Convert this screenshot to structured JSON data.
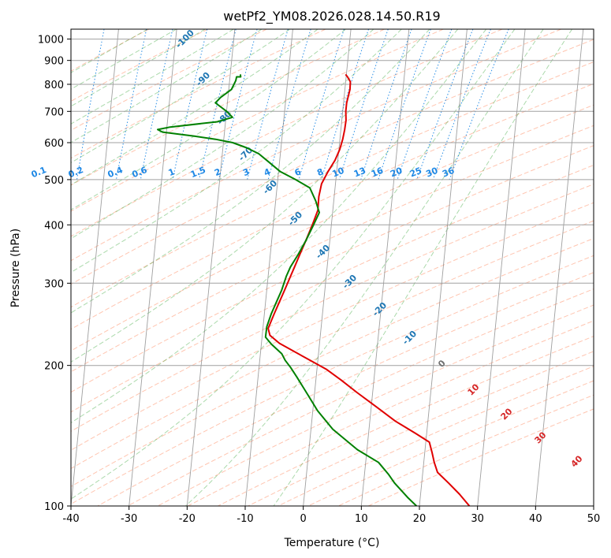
{
  "chart_data": {
    "type": "line",
    "title": "wetPf2_YM08.2026.028.14.50.R19",
    "xlabel": "Temperature (°C)",
    "ylabel": "Pressure (hPa)",
    "xlim": [
      -40,
      50
    ],
    "ylim": [
      1050,
      100
    ],
    "y_scale": "log",
    "x_ticks": [
      -40,
      -30,
      -20,
      -10,
      0,
      10,
      20,
      30,
      40,
      50
    ],
    "y_ticks": [
      100,
      200,
      300,
      400,
      500,
      600,
      700,
      800,
      900,
      1000
    ],
    "grid": true,
    "colors": {
      "temperature": "#e00000",
      "dewpoint": "#008000",
      "dry_adiabat": "#ff7f50",
      "moist_adiabat": "#2ca02c",
      "mixing_ratio": "#1e88e5",
      "isotherm": "#808080",
      "isobar": "#a0a0a0",
      "dry_label": "#d62728",
      "moist_label": "#1f77b4"
    },
    "series": [
      {
        "key": "temperature",
        "points": [
          [
            6.5,
            840
          ],
          [
            6.8,
            830
          ],
          [
            7.2,
            810
          ],
          [
            7.0,
            780
          ],
          [
            6.2,
            730
          ],
          [
            5.9,
            700
          ],
          [
            5.8,
            670
          ],
          [
            5.4,
            640
          ],
          [
            4.9,
            610
          ],
          [
            4.2,
            580
          ],
          [
            3.2,
            550
          ],
          [
            1.8,
            520
          ],
          [
            0.5,
            490
          ],
          [
            -0.2,
            460
          ],
          [
            -0.6,
            430
          ],
          [
            -1.8,
            400
          ],
          [
            -3.2,
            370
          ],
          [
            -4.5,
            345
          ],
          [
            -5.6,
            325
          ],
          [
            -6.6,
            308
          ],
          [
            -7.7,
            290
          ],
          [
            -8.7,
            275
          ],
          [
            -9.9,
            258
          ],
          [
            -11.2,
            240
          ],
          [
            -11.0,
            232
          ],
          [
            -9.5,
            223
          ],
          [
            -4.5,
            205
          ],
          [
            -1.8,
            196
          ],
          [
            0.5,
            186
          ],
          [
            3.0,
            175
          ],
          [
            6.1,
            163
          ],
          [
            9.1,
            152
          ],
          [
            12.4,
            143
          ],
          [
            14.6,
            137
          ],
          [
            14.9,
            130
          ],
          [
            15.1,
            124
          ],
          [
            15.5,
            118
          ],
          [
            17.2,
            112
          ],
          [
            18.9,
            106
          ],
          [
            20.4,
            100
          ]
        ]
      },
      {
        "key": "dewpoint",
        "points": [
          [
            -11.6,
            840
          ],
          [
            -11.6,
            830
          ],
          [
            -12.3,
            830
          ],
          [
            -12.5,
            815
          ],
          [
            -13.4,
            780
          ],
          [
            -15.4,
            750
          ],
          [
            -16.4,
            730
          ],
          [
            -14.6,
            700
          ],
          [
            -13.7,
            680
          ],
          [
            -16.4,
            665
          ],
          [
            -24.6,
            648
          ],
          [
            -26.8,
            640
          ],
          [
            -26.0,
            632
          ],
          [
            -20.7,
            620
          ],
          [
            -17.0,
            610
          ],
          [
            -14.1,
            600
          ],
          [
            -11.8,
            585
          ],
          [
            -9.8,
            568
          ],
          [
            -8.2,
            545
          ],
          [
            -6.4,
            520
          ],
          [
            -3.9,
            500
          ],
          [
            -1.6,
            480
          ],
          [
            -0.8,
            450
          ],
          [
            -0.4,
            425
          ],
          [
            -1.6,
            400
          ],
          [
            -3.2,
            370
          ],
          [
            -4.8,
            345
          ],
          [
            -6.3,
            325
          ],
          [
            -7.2,
            310
          ],
          [
            -8.2,
            290
          ],
          [
            -9.2,
            275
          ],
          [
            -10.4,
            258
          ],
          [
            -11.4,
            242
          ],
          [
            -11.8,
            230
          ],
          [
            -10.9,
            222
          ],
          [
            -9.3,
            212
          ],
          [
            -8.8,
            205
          ],
          [
            -8.0,
            198
          ],
          [
            -7.1,
            189
          ],
          [
            -5.5,
            173
          ],
          [
            -4.1,
            160
          ],
          [
            -1.8,
            146
          ],
          [
            2.1,
            132
          ],
          [
            5.5,
            124
          ],
          [
            7.0,
            117
          ],
          [
            7.9,
            112
          ],
          [
            10.0,
            104
          ],
          [
            11.3,
            100
          ]
        ]
      }
    ],
    "dry_adiabat_labels": [
      "-100",
      "-90",
      "-80",
      "-70",
      "-60",
      "-50",
      "-40",
      "-30",
      "-20",
      "-10"
    ],
    "moist_adiabat_labels": [
      "0",
      "10",
      "20",
      "30",
      "40"
    ],
    "mixing_ratio_labels": [
      "0.1",
      "0.2",
      "0.4",
      "0.6",
      "1",
      "1.5",
      "2",
      "3",
      "4",
      "6",
      "8",
      "10",
      "13",
      "16",
      "20",
      "25",
      "30",
      "36"
    ]
  }
}
